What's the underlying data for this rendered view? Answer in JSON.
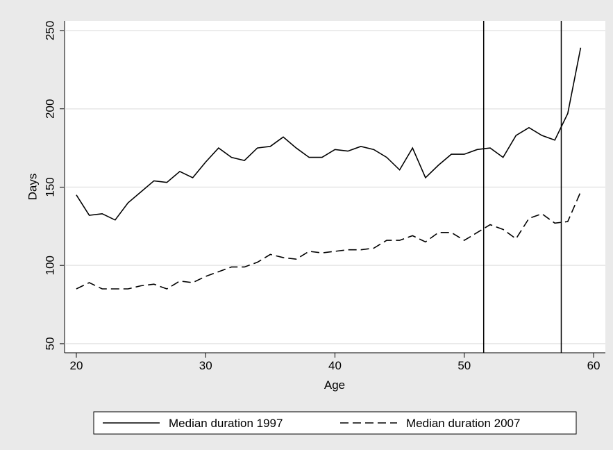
{
  "chart_data": {
    "type": "line",
    "xlabel": "Age",
    "ylabel": "Days",
    "x": [
      20,
      21,
      22,
      23,
      24,
      25,
      26,
      27,
      28,
      29,
      30,
      31,
      32,
      33,
      34,
      35,
      36,
      37,
      38,
      39,
      40,
      41,
      42,
      43,
      44,
      45,
      46,
      47,
      48,
      49,
      50,
      51,
      52,
      53,
      54,
      55,
      56,
      57,
      58,
      59
    ],
    "series": [
      {
        "name": "Median duration 1997",
        "color": "#000000",
        "dash": "solid",
        "values": [
          145,
          132,
          133,
          129,
          140,
          147,
          154,
          153,
          160,
          156,
          166,
          175,
          169,
          167,
          175,
          176,
          182,
          175,
          169,
          169,
          174,
          173,
          176,
          174,
          169,
          161,
          175,
          156,
          164,
          171,
          171,
          174,
          175,
          169,
          183,
          188,
          183,
          180,
          197,
          239
        ]
      },
      {
        "name": "Median duration 2007",
        "color": "#000000",
        "dash": "dashed",
        "values": [
          85,
          89,
          85,
          85,
          85,
          87,
          88,
          85,
          90,
          89,
          93,
          96,
          99,
          99,
          102,
          107,
          105,
          104,
          109,
          108,
          109,
          110,
          110,
          111,
          116,
          116,
          119,
          115,
          121,
          121,
          116,
          121,
          126,
          123,
          117,
          130,
          133,
          127,
          128,
          147
        ]
      }
    ],
    "vlines": [
      51.5,
      57.5
    ],
    "xlim": [
      19.09,
      60.91
    ],
    "xticks": [
      20,
      30,
      40,
      50,
      60
    ],
    "ylim": [
      44.2,
      256.2
    ],
    "yticks": [
      50,
      100,
      150,
      200,
      250
    ],
    "grid": true
  }
}
